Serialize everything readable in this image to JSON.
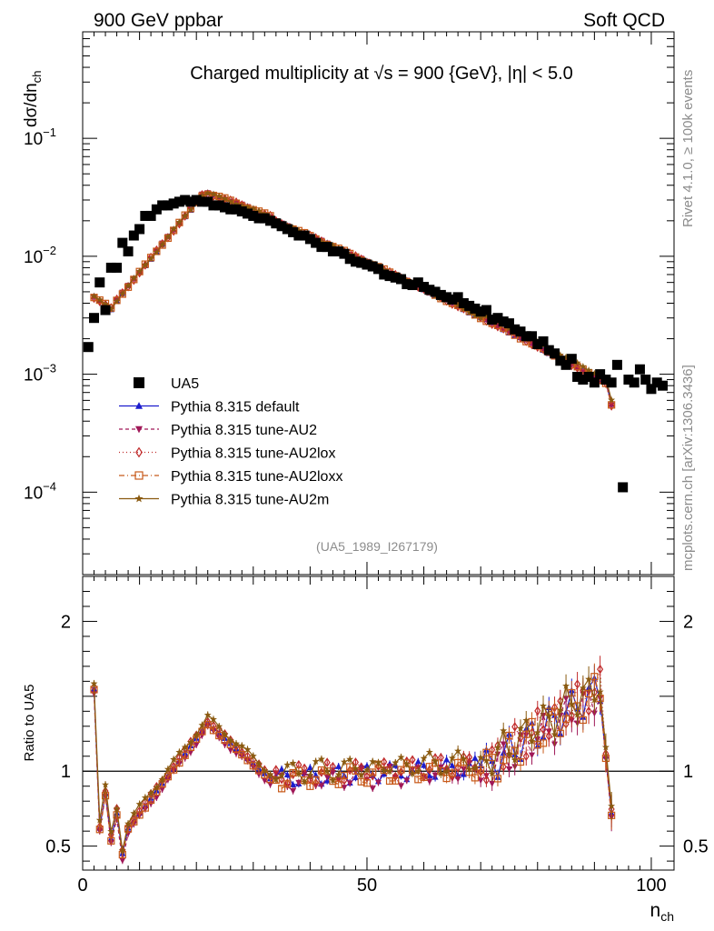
{
  "header": {
    "left": "900 GeV ppbar",
    "right": "Soft QCD"
  },
  "side_labels": {
    "rivet": "Rivet 4.1.0, ≥ 100k events",
    "mcplots": "mcplots.cern.ch [arXiv:1306.3436]"
  },
  "chart_data": [
    {
      "type": "scatter",
      "title": "Charged multiplicity at √s = 900 {GeV}, |η| < 5.0",
      "ylabel": "dσ/dn_ch",
      "yscale": "log",
      "ylim": [
        2e-05,
        0.8
      ],
      "xlim": [
        0,
        104
      ],
      "annotation": "(UA5_1989_I267179)",
      "yticks": [
        {
          "value": 0.1,
          "base": "10",
          "exp": "−1"
        },
        {
          "value": 0.01,
          "base": "10",
          "exp": "−2"
        },
        {
          "value": 0.001,
          "base": "10",
          "exp": "−3"
        },
        {
          "value": 0.0001,
          "base": "10",
          "exp": "−4"
        }
      ],
      "series": [
        {
          "name": "UA5",
          "color": "#000000",
          "marker": "square",
          "x": [
            1,
            2,
            3,
            4,
            5,
            6,
            7,
            8,
            9,
            10,
            11,
            12,
            13,
            14,
            15,
            16,
            17,
            18,
            19,
            20,
            21,
            22,
            23,
            24,
            25,
            26,
            27,
            28,
            29,
            30,
            31,
            32,
            33,
            34,
            35,
            36,
            37,
            38,
            39,
            40,
            41,
            42,
            43,
            44,
            45,
            46,
            47,
            48,
            49,
            50,
            51,
            52,
            53,
            54,
            55,
            56,
            57,
            58,
            59,
            60,
            61,
            62,
            63,
            64,
            65,
            66,
            67,
            68,
            69,
            70,
            71,
            72,
            73,
            74,
            75,
            76,
            77,
            78,
            79,
            80,
            81,
            82,
            83,
            84,
            85,
            86,
            87,
            88,
            89,
            90,
            91,
            92,
            93,
            94,
            95,
            96,
            97,
            98,
            99,
            100,
            101,
            102
          ],
          "values": [
            0.0017,
            0.003,
            0.006,
            0.0035,
            0.008,
            0.008,
            0.013,
            0.011,
            0.015,
            0.017,
            0.022,
            0.022,
            0.025,
            0.027,
            0.027,
            0.028,
            0.029,
            0.03,
            0.029,
            0.03,
            0.029,
            0.029,
            0.027,
            0.027,
            0.026,
            0.025,
            0.025,
            0.024,
            0.023,
            0.022,
            0.021,
            0.021,
            0.02,
            0.019,
            0.018,
            0.017,
            0.016,
            0.015,
            0.015,
            0.014,
            0.013,
            0.012,
            0.012,
            0.011,
            0.011,
            0.0105,
            0.0095,
            0.009,
            0.0088,
            0.0085,
            0.0082,
            0.0078,
            0.007,
            0.0068,
            0.0066,
            0.0064,
            0.0058,
            0.0057,
            0.006,
            0.0055,
            0.0052,
            0.005,
            0.0047,
            0.0045,
            0.0043,
            0.0045,
            0.004,
            0.0038,
            0.0036,
            0.0034,
            0.0035,
            0.0029,
            0.003,
            0.0028,
            0.0027,
            0.0024,
            0.0023,
            0.0021,
            0.0021,
            0.0018,
            0.0019,
            0.0016,
            0.0015,
            0.0013,
            0.0012,
            0.00135,
            0.00095,
            0.0009,
            0.00095,
            0.00085,
            0.001,
            0.0009,
            0.00085,
            0.0012,
            0.00011,
            0.0009,
            0.00085,
            0.0011,
            0.0009,
            0.00075,
            0.00085,
            0.0008
          ]
        },
        {
          "name": "Pythia 8.315 default",
          "color": "#1c1ccd",
          "marker": "triangle-up",
          "dash": ""
        },
        {
          "name": "Pythia 8.315 tune-AU2",
          "color": "#a01858",
          "marker": "triangle-down",
          "dash": "4,3"
        },
        {
          "name": "Pythia 8.315 tune-AU2lox",
          "color": "#c02a2a",
          "marker": "diamond-open",
          "dash": "1,3"
        },
        {
          "name": "Pythia 8.315 tune-AU2loxx",
          "color": "#c85a1a",
          "marker": "square-open",
          "dash": "6,3,1,3"
        },
        {
          "name": "Pythia 8.315 tune-AU2m",
          "color": "#8a5a10",
          "marker": "star",
          "dash": ""
        }
      ]
    },
    {
      "type": "line",
      "ylabel": "Ratio to UA5",
      "xlabel": "n_ch",
      "ylim": [
        0.34,
        2.3
      ],
      "xlim": [
        0,
        104
      ],
      "xticks": [
        "0",
        "50",
        "100"
      ],
      "yticks": [
        "0.5",
        "1",
        "2"
      ],
      "reference": 1
    }
  ]
}
